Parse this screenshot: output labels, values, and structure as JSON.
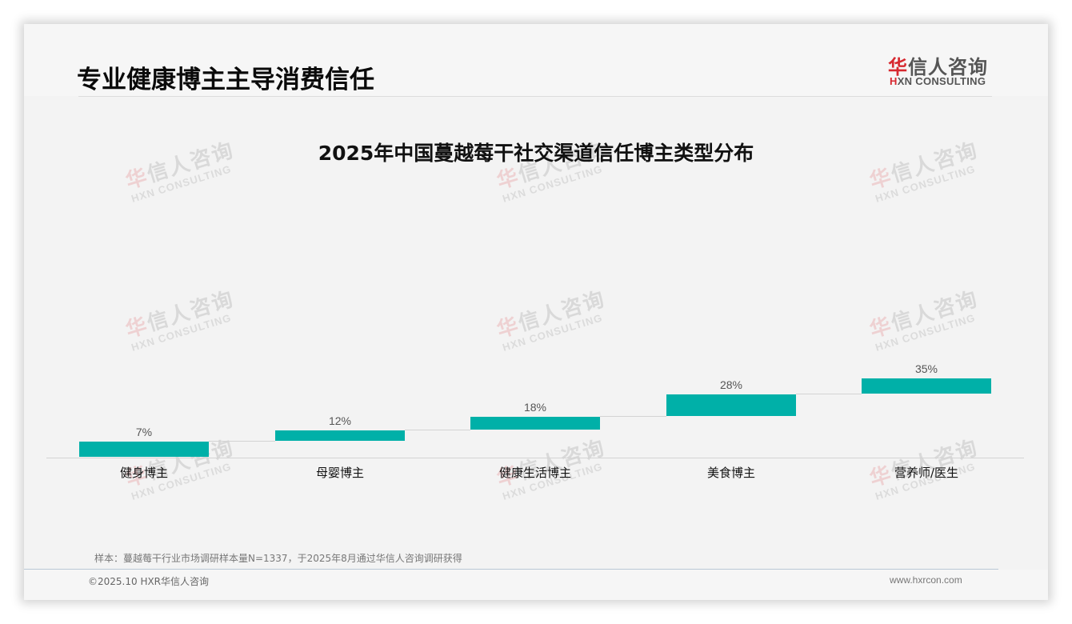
{
  "header": {
    "page_title": "专业健康博主主导消费信任",
    "logo": {
      "cn_accent": "华",
      "cn_rest": "信人咨询",
      "en_accent": "H",
      "en_rest": "XN CONSULTING"
    }
  },
  "watermark": {
    "cn_accent": "华",
    "cn_rest": "信人咨询",
    "en": "HXN CONSULTING"
  },
  "colors": {
    "bar": "#00b0a8",
    "brand_red": "#d7282f",
    "background": "#f3f3f3"
  },
  "chart_data": {
    "type": "bar",
    "subtype": "waterfall",
    "title": "2025年中国蔓越莓干社交渠道信任博主类型分布",
    "xlabel": "",
    "ylabel": "",
    "categories": [
      "健身博主",
      "母婴博主",
      "健康生活博主",
      "美食博主",
      "营养师/医生"
    ],
    "values": [
      7,
      12,
      18,
      28,
      35
    ],
    "value_labels": [
      "7%",
      "12%",
      "18%",
      "28%",
      "35%"
    ],
    "unit": "%",
    "grid": false,
    "legend": null
  },
  "footer": {
    "note": "样本：蔓越莓干行业市场调研样本量N=1337，于2025年8月通过华信人咨询调研获得",
    "copyright": "©2025.10 HXR华信人咨询",
    "website": "www.hxrcon.com"
  }
}
